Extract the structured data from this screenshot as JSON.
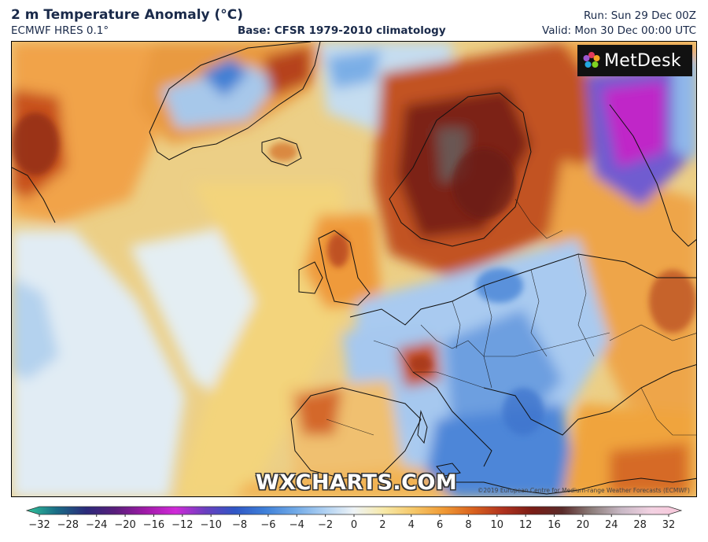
{
  "header": {
    "title": "2 m Temperature Anomaly (°C)",
    "model": "ECMWF HRES 0.1°",
    "base": "Base: CFSR 1979-2010 climatology",
    "run": "Run: Sun 29 Dec 00Z",
    "valid": "Valid: Mon 30 Dec 00:00 UTC"
  },
  "map": {
    "logo_text": "MetDesk",
    "watermark": "WXCHARTS.COM",
    "copyright": "©2019 European Centre for Medium-range Weather Forecasts (ECMWF)"
  },
  "colorbar": {
    "ticks": [
      "−32",
      "−28",
      "−24",
      "−20",
      "−16",
      "−12",
      "−10",
      "−8",
      "−6",
      "−4",
      "−2",
      "0",
      "2",
      "4",
      "6",
      "8",
      "10",
      "12",
      "16",
      "20",
      "24",
      "28",
      "32"
    ],
    "colors": [
      "#2fc49a",
      "#1a6c86",
      "#2b2a7a",
      "#5b1e7c",
      "#a01aa8",
      "#d02ad8",
      "#6a3fbf",
      "#2f56c5",
      "#3e7fd8",
      "#6fa8e6",
      "#aed0f2",
      "#eef3f6",
      "#f7e9a8",
      "#f5c768",
      "#f09a35",
      "#d9621e",
      "#b0321e",
      "#7a1d16",
      "#5a2b2a",
      "#8e7f7c",
      "#c9b9c6",
      "#f3d2e2",
      "#f7c6d9"
    ]
  }
}
